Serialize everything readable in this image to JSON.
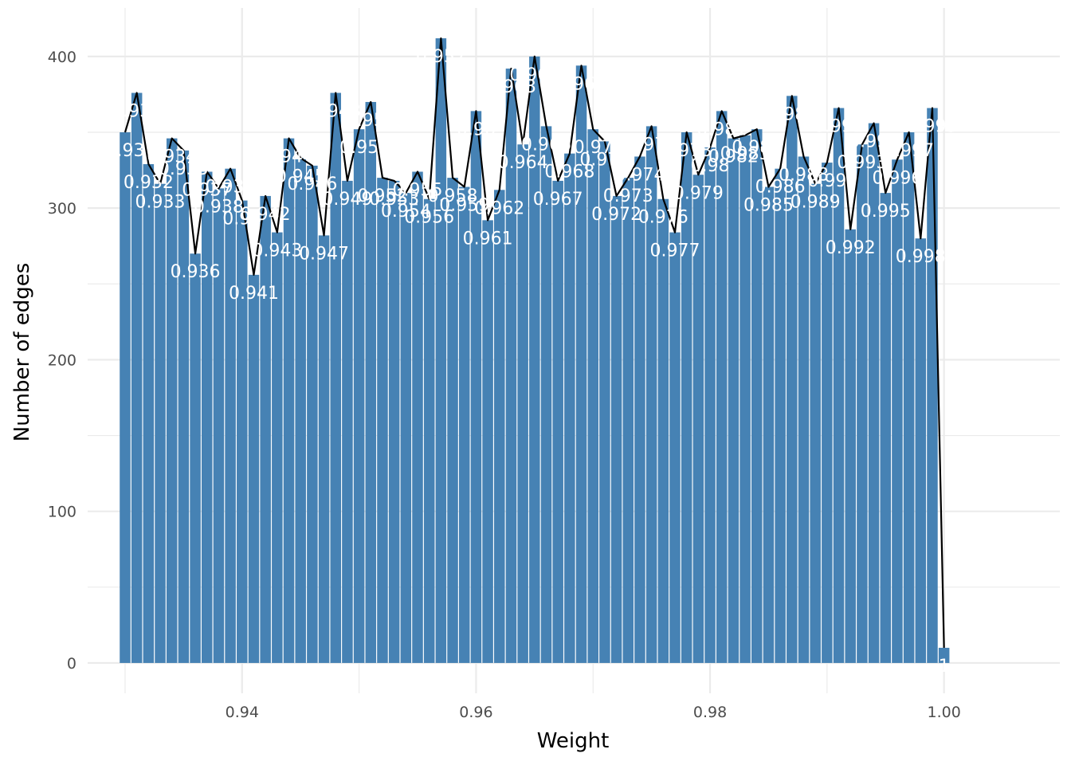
{
  "chart_data": {
    "type": "bar",
    "title": "",
    "xlabel": "Weight",
    "ylabel": "Number of edges",
    "xlim": [
      0.9268,
      1.0099
    ],
    "ylim": [
      -20,
      432
    ],
    "x_ticks": [
      "0.94",
      "0.96",
      "0.98",
      "1.00"
    ],
    "x_tick_values": [
      0.94,
      0.96,
      0.98,
      1.0
    ],
    "y_ticks": [
      "0",
      "100",
      "200",
      "300",
      "400"
    ],
    "y_tick_values": [
      0,
      100,
      200,
      300,
      400
    ],
    "grid": true,
    "bar_width": 0.00092,
    "colors": {
      "bar": "#4682b4",
      "line": "#000000",
      "label": "#ffffff",
      "grid": "#ebebeb"
    },
    "x": [
      0.93,
      0.931,
      0.932,
      0.933,
      0.934,
      0.935,
      0.936,
      0.937,
      0.938,
      0.939,
      0.94,
      0.941,
      0.942,
      0.943,
      0.944,
      0.945,
      0.946,
      0.947,
      0.948,
      0.949,
      0.95,
      0.951,
      0.952,
      0.953,
      0.954,
      0.955,
      0.956,
      0.957,
      0.958,
      0.959,
      0.96,
      0.961,
      0.962,
      0.963,
      0.964,
      0.965,
      0.966,
      0.967,
      0.968,
      0.969,
      0.97,
      0.971,
      0.972,
      0.973,
      0.974,
      0.975,
      0.976,
      0.977,
      0.978,
      0.979,
      0.98,
      0.981,
      0.982,
      0.983,
      0.984,
      0.985,
      0.986,
      0.987,
      0.988,
      0.989,
      0.99,
      0.991,
      0.992,
      0.993,
      0.994,
      0.995,
      0.996,
      0.997,
      0.998,
      0.999,
      1.0
    ],
    "values": [
      350,
      376,
      329,
      316,
      346,
      338,
      270,
      324,
      313,
      326,
      305,
      256,
      308,
      284,
      346,
      333,
      328,
      282,
      376,
      318,
      352,
      370,
      320,
      318,
      310,
      324,
      306,
      412,
      320,
      314,
      364,
      292,
      312,
      392,
      342,
      400,
      354,
      318,
      336,
      394,
      352,
      344,
      308,
      320,
      334,
      354,
      306,
      284,
      350,
      322,
      340,
      364,
      346,
      348,
      352,
      314,
      326,
      374,
      334,
      316,
      330,
      366,
      286,
      342,
      356,
      310,
      332,
      350,
      280,
      366,
      10
    ],
    "data_labels": [
      "0.93",
      "0.931",
      "0.932",
      "0.933",
      "0.934",
      "0.935",
      "0.936",
      "0.937",
      "0.938",
      "0.939",
      "0.94",
      "0.941",
      "0.942",
      "0.943",
      "0.944",
      "0.945",
      "0.946",
      "0.947",
      "0.948",
      "0.949",
      "0.95",
      "0.951",
      "0.952",
      "0.953",
      "0.954",
      "0.955",
      "0.956",
      "0.957",
      "0.958",
      "0.959",
      "0.96",
      "0.961",
      "0.962",
      "0.963",
      "0.964",
      "0.965",
      "0.966",
      "0.967",
      "0.968",
      "0.969",
      "0.97",
      "0.971",
      "0.972",
      "0.973",
      "0.974",
      "0.975",
      "0.976",
      "0.977",
      "0.978",
      "0.979",
      "0.98",
      "0.981",
      "0.982",
      "0.983",
      "0.984",
      "0.985",
      "0.986",
      "0.987",
      "0.988",
      "0.989",
      "0.99",
      "0.991",
      "0.992",
      "0.993",
      "0.994",
      "0.995",
      "0.996",
      "0.997",
      "0.998",
      "0.999",
      "1"
    ]
  }
}
